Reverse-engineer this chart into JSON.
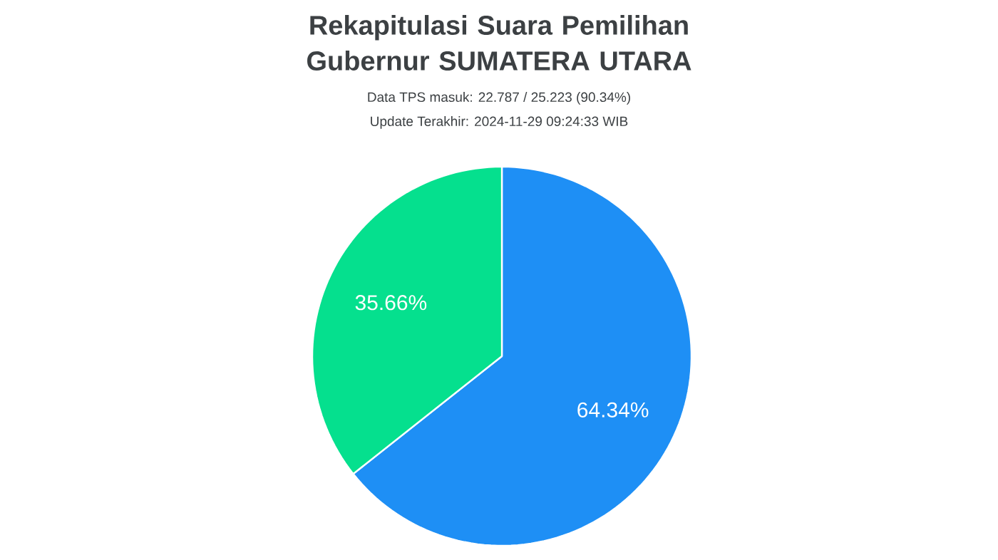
{
  "chart_data": {
    "type": "pie",
    "title": "Rekapitulasi Suara Pemilihan Gubernur SUMATERA UTARA",
    "subtitle": "Data TPS masuk: 22.787 / 25.223 (90.34%)",
    "annotations": [
      "Update Terakhir: 2024-11-29 09:24:33 WIB"
    ],
    "categories": [
      null,
      null
    ],
    "values": [
      64.34,
      35.66
    ],
    "colors": [
      "#1e8ff5",
      "#05e08e"
    ],
    "value_labels": [
      "64.34%",
      "35.66%"
    ]
  }
}
